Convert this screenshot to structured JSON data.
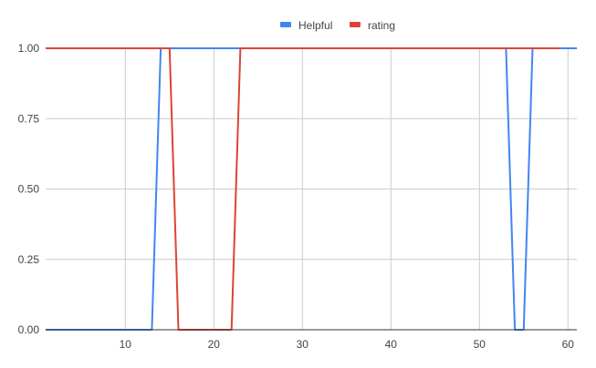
{
  "chart_data": {
    "type": "line",
    "title": "",
    "xlabel": "",
    "ylabel": "",
    "xlim": [
      1,
      61
    ],
    "ylim": [
      0,
      1
    ],
    "x_ticks": [
      10,
      20,
      30,
      40,
      50,
      60
    ],
    "y_ticks": [
      0,
      0.25,
      0.5,
      0.75,
      1
    ],
    "y_tick_labels": [
      "0.00",
      "0.25",
      "0.50",
      "0.75",
      "1.00"
    ],
    "grid": true,
    "legend_position": "top",
    "series": [
      {
        "name": "Helpful",
        "color": "#4285f4",
        "points": [
          [
            1,
            0
          ],
          [
            13,
            0
          ],
          [
            14,
            1
          ],
          [
            53,
            1
          ],
          [
            54,
            0
          ],
          [
            55,
            0
          ],
          [
            56,
            1
          ],
          [
            61,
            1
          ]
        ]
      },
      {
        "name": "rating",
        "color": "#db4437",
        "points": [
          [
            1,
            1
          ],
          [
            15,
            1
          ],
          [
            16,
            0
          ],
          [
            22,
            0
          ],
          [
            23,
            1
          ],
          [
            59,
            1
          ]
        ]
      }
    ]
  }
}
